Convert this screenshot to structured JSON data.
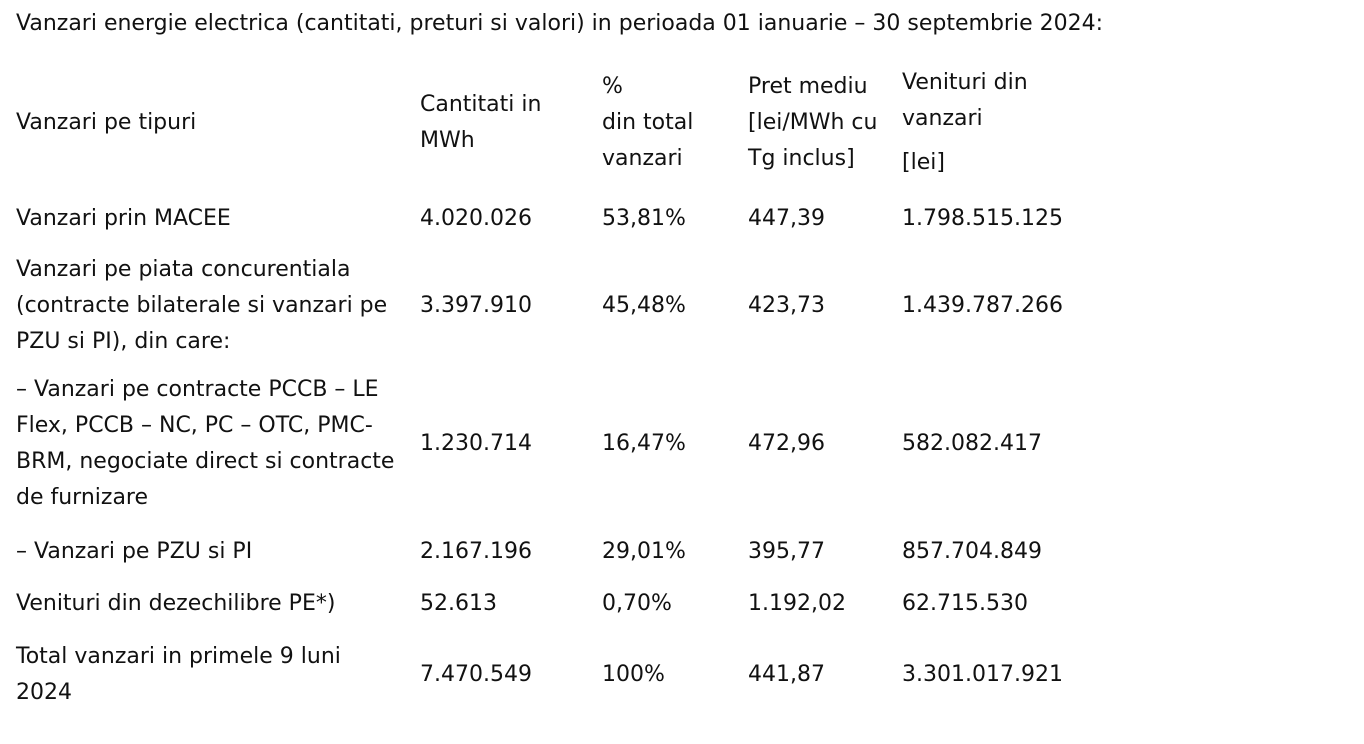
{
  "title": "Vanzari energie electrica (cantitati, preturi si valori) in perioada 01 ianuarie – 30 septembrie 2024:",
  "table": {
    "headers": {
      "type": [
        "Vanzari pe tipuri"
      ],
      "quantity": [
        "Cantitati in",
        "MWh"
      ],
      "share": [
        "%",
        "din total",
        "vanzari"
      ],
      "price": [
        "Pret mediu",
        "[lei/MWh cu",
        "Tg inclus]"
      ],
      "revenue": [
        "Venituri din",
        "vanzari",
        "[lei]"
      ]
    },
    "rows": [
      {
        "type": [
          "Vanzari prin MACEE"
        ],
        "quantity": "4.020.026",
        "share": "53,81%",
        "price": "447,39",
        "revenue": "1.798.515.125"
      },
      {
        "type": [
          "Vanzari pe piata concurentiala",
          "(contracte bilaterale si vanzari pe",
          "PZU si PI), din care:"
        ],
        "quantity": "3.397.910",
        "share": "45,48%",
        "price": "423,73",
        "revenue": "1.439.787.266"
      },
      {
        "type": [
          "– Vanzari pe contracte PCCB – LE",
          "Flex, PCCB – NC, PC – OTC, PMC-",
          "BRM, negociate direct si contracte",
          "de furnizare"
        ],
        "quantity": "1.230.714",
        "share": "16,47%",
        "price": "472,96",
        "revenue": "582.082.417"
      },
      {
        "type": [
          "– Vanzari pe PZU si PI"
        ],
        "quantity": "2.167.196",
        "share": "29,01%",
        "price": "395,77",
        "revenue": "857.704.849"
      },
      {
        "type": [
          "Venituri din dezechilibre PE*)"
        ],
        "quantity": "52.613",
        "share": "0,70%",
        "price": "1.192,02",
        "revenue": "62.715.530"
      },
      {
        "type": [
          "Total vanzari in primele 9 luni",
          "2024"
        ],
        "quantity": "7.470.549",
        "share": "100%",
        "price": "441,87",
        "revenue": "3.301.017.921"
      }
    ]
  }
}
